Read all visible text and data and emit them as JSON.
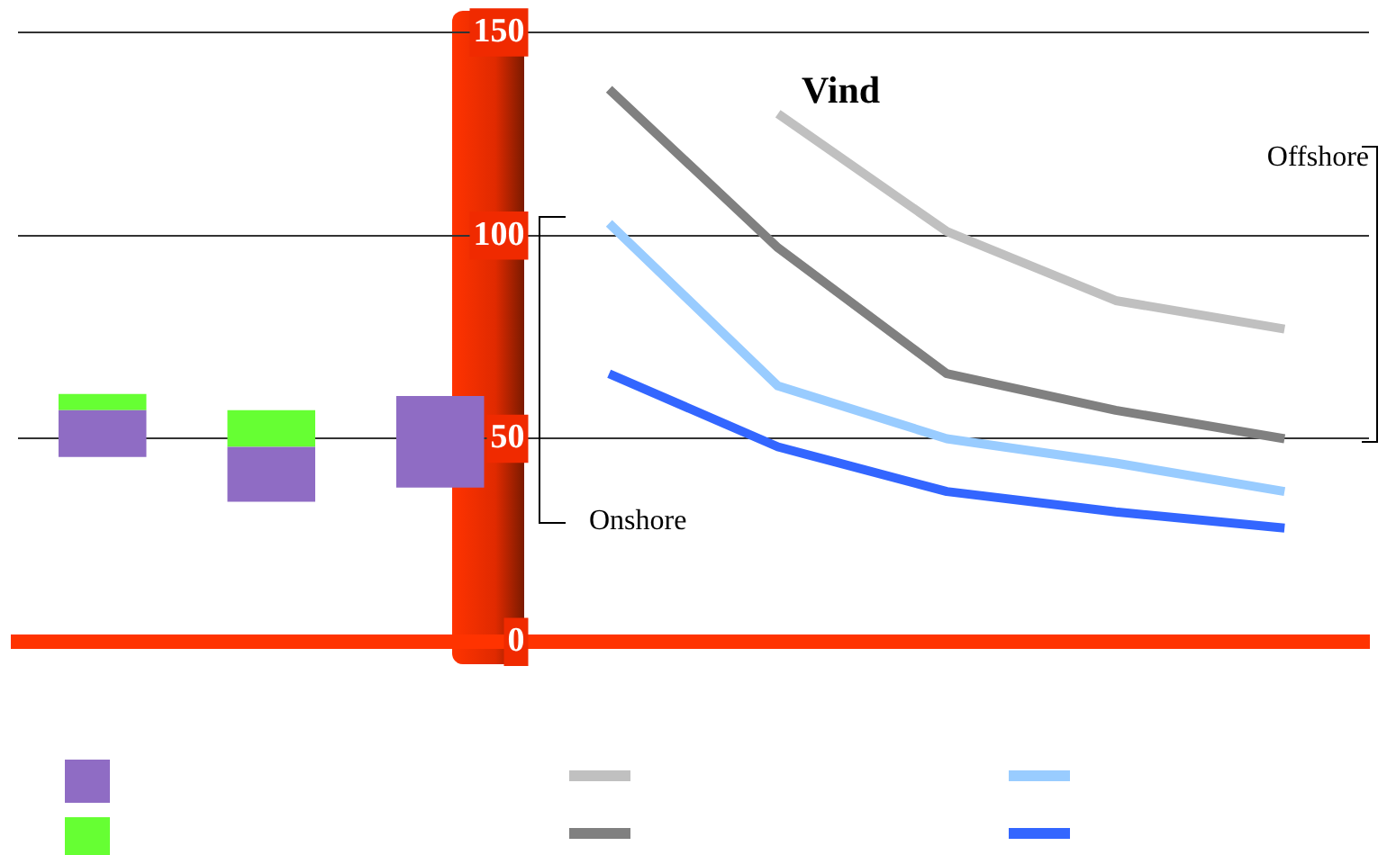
{
  "chart_data": {
    "type": "bar",
    "title": "Vind",
    "categories": [
      null,
      null,
      null,
      null,
      null,
      null,
      null,
      null
    ],
    "series": [
      {
        "color": "#8f6cc4",
        "base": [
          45.5,
          34.5,
          38,
          null,
          null,
          null,
          null,
          null
        ],
        "values": [
          11.5,
          13.5,
          22.5,
          null,
          null,
          null,
          null,
          null
        ]
      },
      {
        "color": "#66ff33",
        "base": [
          57,
          48,
          null,
          null,
          null,
          null,
          null,
          null
        ],
        "values": [
          4,
          9,
          null,
          null,
          null,
          null,
          null,
          null
        ]
      },
      {
        "type": "line",
        "color": "#c0c0c0",
        "values": [
          null,
          null,
          null,
          null,
          130,
          101,
          84,
          77
        ]
      },
      {
        "type": "line",
        "color": "#808080",
        "values": [
          null,
          null,
          null,
          136,
          97,
          66,
          57,
          50
        ]
      },
      {
        "type": "line",
        "color": "#99ccff",
        "values": [
          null,
          null,
          null,
          103,
          63,
          50,
          44,
          37
        ]
      },
      {
        "type": "line",
        "color": "#3366ff",
        "values": [
          null,
          null,
          null,
          66,
          48,
          37,
          32,
          28
        ]
      }
    ],
    "ylim": [
      0,
      150
    ],
    "yticks": [
      0,
      50,
      100,
      150
    ],
    "grid": "y",
    "tick_labels": "y",
    "marker": "none",
    "line_style": "solid",
    "annotations": [
      "Onshore",
      "Offshore"
    ]
  }
}
